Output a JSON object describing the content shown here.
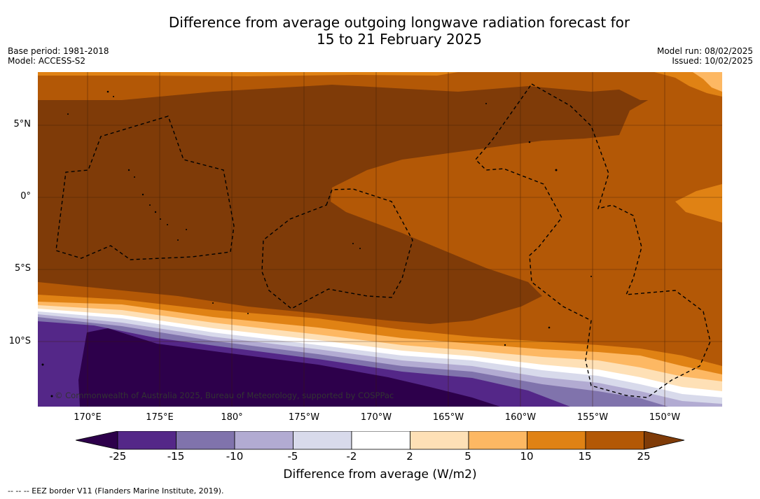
{
  "title": {
    "line1": "Difference from average outgoing longwave radiation forecast for",
    "line2": "15 to 21 February 2025"
  },
  "meta_left": {
    "base_period": "Base period: 1981-2018",
    "model": "Model: ACCESS-S2"
  },
  "meta_right": {
    "model_run": "Model run: 08/02/2025",
    "issued": "Issued: 10/02/2025"
  },
  "lat_labels": [
    "5°N",
    "0°",
    "5°S",
    "10°S"
  ],
  "lon_labels": [
    "170°E",
    "175°E",
    "180°",
    "175°W",
    "170°W",
    "165°W",
    "160°W",
    "155°W",
    "150°W"
  ],
  "colorbar": {
    "ticks": [
      "-25",
      "-15",
      "-10",
      "-5",
      "-2",
      "2",
      "5",
      "10",
      "15",
      "25"
    ],
    "label": "Difference from average (W/m2)",
    "colors": {
      "below_min": "#2d004b",
      "n25_n15": "#542788",
      "n15_n10": "#8073ac",
      "n10_n5": "#b2abd2",
      "n5_n2": "#d8daeb",
      "n2_2": "#ffffff",
      "2_5": "#fee0b6",
      "5_10": "#fdb863",
      "10_15": "#e08214",
      "15_25": "#b35806",
      "above_max": "#7f3b08"
    }
  },
  "copyright": "© Commonwealth of Australia 2025, Bureau of Meteorology, supported by COSPPac",
  "footer": "--  --  -- EEZ border V11 (Flanders Marine Institute, 2019)."
}
